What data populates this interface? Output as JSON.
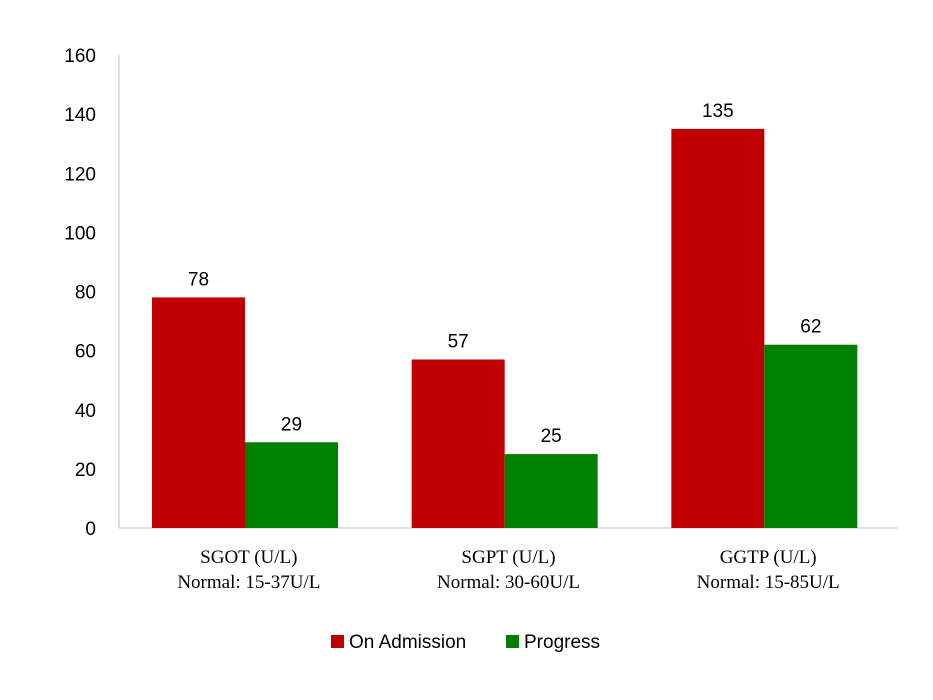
{
  "chart_data": {
    "type": "bar",
    "title": "",
    "xlabel": "",
    "ylabel": "",
    "ylim": [
      0,
      160
    ],
    "yticks": [
      0,
      20,
      40,
      60,
      80,
      100,
      120,
      140,
      160
    ],
    "grid": false,
    "legend_position": "bottom",
    "categories": [
      {
        "name": "SGOT (U/L)",
        "normal": "Normal: 15-37U/L"
      },
      {
        "name": "SGPT (U/L)",
        "normal": "Normal: 30-60U/L"
      },
      {
        "name": "GGTP (U/L)",
        "normal": "Normal: 15-85U/L"
      }
    ],
    "series": [
      {
        "name": "On Admission",
        "color": "#c00000",
        "values": [
          78,
          57,
          135
        ]
      },
      {
        "name": "Progress",
        "color": "#008000",
        "values": [
          29,
          25,
          62
        ]
      }
    ]
  }
}
